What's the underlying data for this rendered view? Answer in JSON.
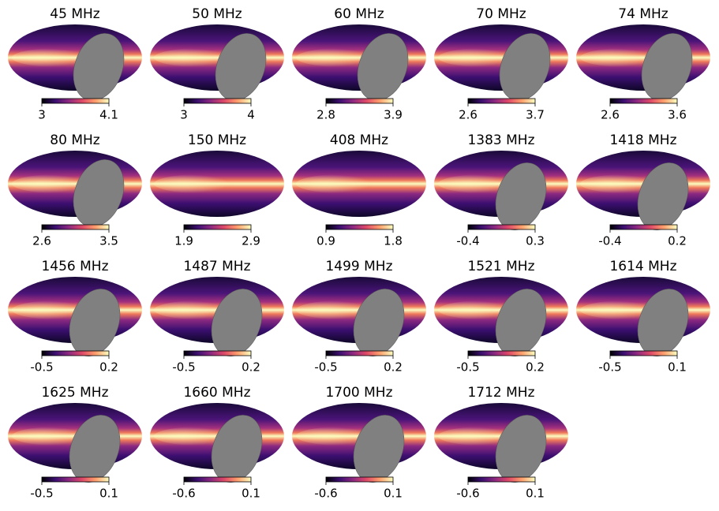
{
  "panels": [
    {
      "title": "45 MHz",
      "cbar_ticks": [
        3,
        4.1
      ],
      "mask": true
    },
    {
      "title": "50 MHz",
      "cbar_ticks": [
        3,
        4
      ],
      "mask": true
    },
    {
      "title": "60 MHz",
      "cbar_ticks": [
        2.8,
        3.9
      ],
      "mask": true
    },
    {
      "title": "70 MHz",
      "cbar_ticks": [
        2.6,
        3.7
      ],
      "mask": true
    },
    {
      "title": "74 MHz",
      "cbar_ticks": [
        2.6,
        3.6
      ],
      "mask": true
    },
    {
      "title": "80 MHz",
      "cbar_ticks": [
        2.6,
        3.5
      ],
      "mask": true
    },
    {
      "title": "150 MHz",
      "cbar_ticks": [
        1.9,
        2.9
      ],
      "mask": false
    },
    {
      "title": "408 MHz",
      "cbar_ticks": [
        0.9,
        1.8
      ],
      "mask": false
    },
    {
      "title": "1383 MHz",
      "cbar_ticks": [
        -0.4,
        0.3
      ],
      "mask": true
    },
    {
      "title": "1418 MHz",
      "cbar_ticks": [
        -0.4,
        0.2
      ],
      "mask": true
    },
    {
      "title": "1456 MHz",
      "cbar_ticks": [
        -0.5,
        0.2
      ],
      "mask": true
    },
    {
      "title": "1487 MHz",
      "cbar_ticks": [
        -0.5,
        0.2
      ],
      "mask": true
    },
    {
      "title": "1499 MHz",
      "cbar_ticks": [
        -0.5,
        0.2
      ],
      "mask": true
    },
    {
      "title": "1521 MHz",
      "cbar_ticks": [
        -0.5,
        0.2
      ],
      "mask": true
    },
    {
      "title": "1614 MHz",
      "cbar_ticks": [
        -0.5,
        0.1
      ],
      "mask": true
    },
    {
      "title": "1625 MHz",
      "cbar_ticks": [
        -0.5,
        0.1
      ],
      "mask": true
    },
    {
      "title": "1660 MHz",
      "cbar_ticks": [
        -0.6,
        0.1
      ],
      "mask": true
    },
    {
      "title": "1700 MHz",
      "cbar_ticks": [
        -0.6,
        0.1
      ],
      "mask": true
    },
    {
      "title": "1712 MHz",
      "cbar_ticks": [
        -0.6,
        0.1
      ],
      "mask": true
    }
  ]
}
